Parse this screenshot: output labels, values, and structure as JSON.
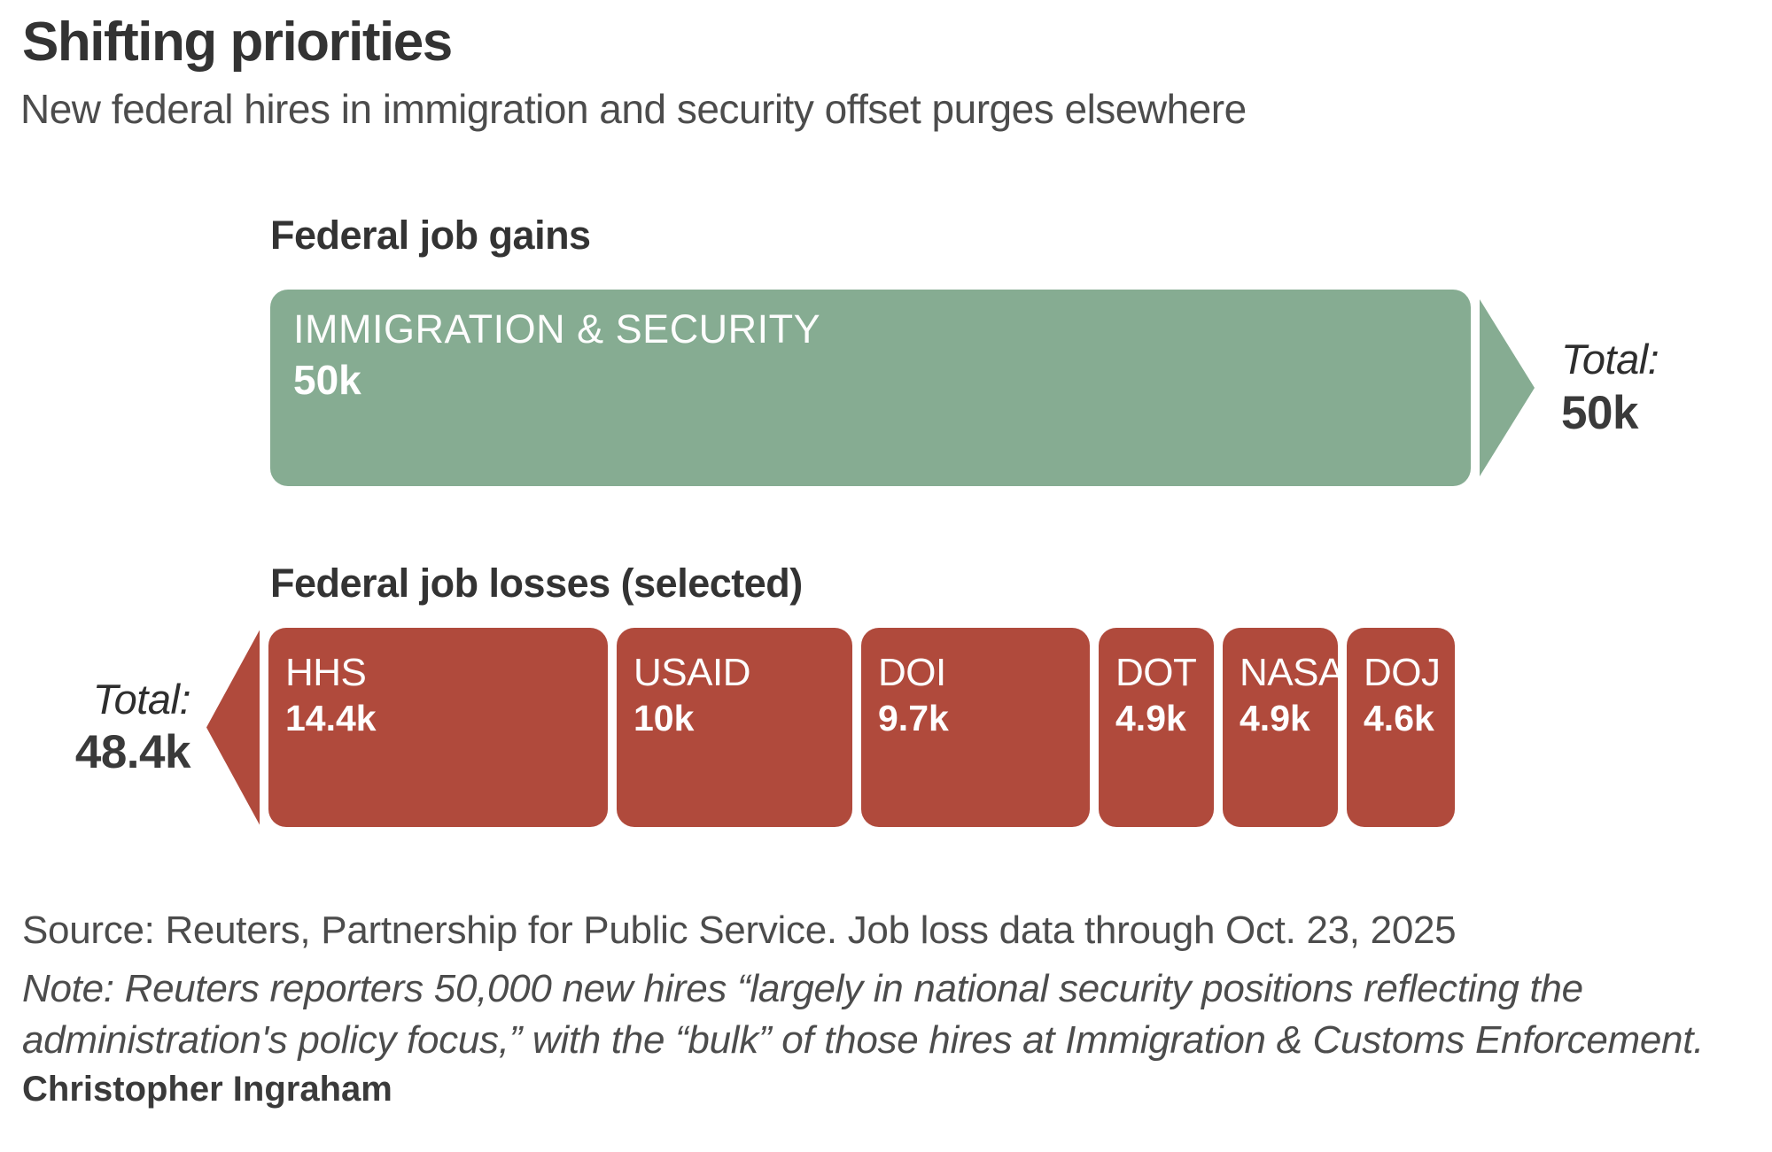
{
  "chart_data": {
    "type": "bar",
    "orientation": "horizontal",
    "units": "thousands of jobs (k)",
    "title": "Shifting priorities",
    "subtitle": "New federal hires in immigration and security offset purges elsewhere",
    "gains": {
      "section_title": "Federal job gains",
      "total_label": "Total:",
      "total_value": "50k",
      "total_numeric": 50,
      "segments": [
        {
          "name": "IMMIGRATION & SECURITY",
          "value": 50,
          "value_label": "50k"
        }
      ]
    },
    "losses": {
      "section_title": "Federal job losses (selected)",
      "total_label": "Total:",
      "total_value": "48.4k",
      "total_numeric": 48.4,
      "segments": [
        {
          "name": "HHS",
          "value": 14.4,
          "value_label": "14.4k"
        },
        {
          "name": "USAID",
          "value": 10,
          "value_label": "10k"
        },
        {
          "name": "DOI",
          "value": 9.7,
          "value_label": "9.7k"
        },
        {
          "name": "DOT",
          "value": 4.9,
          "value_label": "4.9k"
        },
        {
          "name": "NASA",
          "value": 4.9,
          "value_label": "4.9k"
        },
        {
          "name": "DOJ",
          "value": 4.6,
          "value_label": "4.6k"
        }
      ]
    },
    "source": "Source: Reuters, Partnership for Public Service. Job loss data through Oct. 23, 2025",
    "note": "Note: Reuters reporters 50,000 new hires “largely in national security positions reflecting the administration's policy focus,” with the “bulk” of those hires at Immigration & Customs Enforcement.",
    "byline": "Christopher Ingraham",
    "colors": {
      "gain": "#86ac92",
      "loss": "#b04a3c",
      "text_dark": "#3b3b3b",
      "text_gray": "#4c4c4c"
    },
    "legend": "none",
    "grid": false
  }
}
